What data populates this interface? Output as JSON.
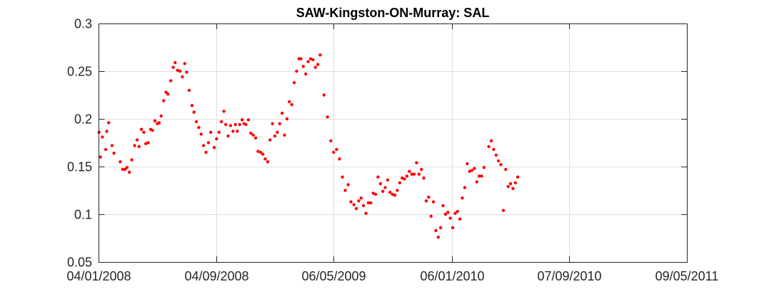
{
  "colors": {
    "marker": "#ff0000",
    "axes": "#262626",
    "grid": "#dfdfdf",
    "background": "#ffffff"
  },
  "chart_data": {
    "type": "scatter",
    "title": "SAW-Kingston-ON-Murray: SAL",
    "xlabel": "",
    "ylabel": "",
    "grid": true,
    "legend": "none",
    "x_axis_kind": "date",
    "xlim": [
      "2008-01-04",
      "2011-05-09"
    ],
    "ylim": [
      0.05,
      0.3
    ],
    "x_ticks": [
      {
        "date": "2008-01-04",
        "label": "04/01/2008"
      },
      {
        "date": "2008-09-04",
        "label": "04/09/2008"
      },
      {
        "date": "2009-05-06",
        "label": "06/05/2009"
      },
      {
        "date": "2010-01-06",
        "label": "06/01/2010"
      },
      {
        "date": "2010-09-07",
        "label": "07/09/2010"
      },
      {
        "date": "2011-05-09",
        "label": "09/05/2011"
      }
    ],
    "y_ticks": [
      {
        "value": 0.05,
        "label": "0.05"
      },
      {
        "value": 0.1,
        "label": "0.1"
      },
      {
        "value": 0.15,
        "label": "0.15"
      },
      {
        "value": 0.2,
        "label": "0.2"
      },
      {
        "value": 0.25,
        "label": "0.25"
      },
      {
        "value": 0.3,
        "label": "0.3"
      }
    ],
    "points": [
      [
        "2008-01-05",
        0.186
      ],
      [
        "2008-01-08",
        0.16
      ],
      [
        "2008-01-12",
        0.181
      ],
      [
        "2008-01-19",
        0.168
      ],
      [
        "2008-01-21",
        0.187
      ],
      [
        "2008-01-25",
        0.196
      ],
      [
        "2008-02-01",
        0.172
      ],
      [
        "2008-02-05",
        0.164
      ],
      [
        "2008-02-18",
        0.155
      ],
      [
        "2008-02-23",
        0.147
      ],
      [
        "2008-02-28",
        0.147
      ],
      [
        "2008-03-03",
        0.149
      ],
      [
        "2008-03-08",
        0.144
      ],
      [
        "2008-03-13",
        0.157
      ],
      [
        "2008-03-19",
        0.172
      ],
      [
        "2008-03-24",
        0.178
      ],
      [
        "2008-03-28",
        0.171
      ],
      [
        "2008-04-02",
        0.189
      ],
      [
        "2008-04-07",
        0.186
      ],
      [
        "2008-04-11",
        0.174
      ],
      [
        "2008-04-16",
        0.175
      ],
      [
        "2008-04-21",
        0.189
      ],
      [
        "2008-04-25",
        0.188
      ],
      [
        "2008-04-30",
        0.198
      ],
      [
        "2008-05-05",
        0.195
      ],
      [
        "2008-05-09",
        0.196
      ],
      [
        "2008-05-13",
        0.203
      ],
      [
        "2008-05-18",
        0.219
      ],
      [
        "2008-05-23",
        0.228
      ],
      [
        "2008-05-27",
        0.226
      ],
      [
        "2008-06-02",
        0.24
      ],
      [
        "2008-06-07",
        0.254
      ],
      [
        "2008-06-11",
        0.259
      ],
      [
        "2008-06-16",
        0.251
      ],
      [
        "2008-06-21",
        0.25
      ],
      [
        "2008-06-26",
        0.244
      ],
      [
        "2008-07-01",
        0.258
      ],
      [
        "2008-07-05",
        0.249
      ],
      [
        "2008-07-10",
        0.23
      ],
      [
        "2008-07-16",
        0.214
      ],
      [
        "2008-07-20",
        0.207
      ],
      [
        "2008-07-25",
        0.197
      ],
      [
        "2008-07-30",
        0.191
      ],
      [
        "2008-08-04",
        0.184
      ],
      [
        "2008-08-09",
        0.172
      ],
      [
        "2008-08-14",
        0.165
      ],
      [
        "2008-08-19",
        0.175
      ],
      [
        "2008-08-24",
        0.186
      ],
      [
        "2008-08-31",
        0.17
      ],
      [
        "2008-09-05",
        0.179
      ],
      [
        "2008-09-10",
        0.186
      ],
      [
        "2008-09-15",
        0.197
      ],
      [
        "2008-09-20",
        0.208
      ],
      [
        "2008-09-24",
        0.194
      ],
      [
        "2008-09-29",
        0.182
      ],
      [
        "2008-10-04",
        0.193
      ],
      [
        "2008-10-09",
        0.187
      ],
      [
        "2008-10-14",
        0.194
      ],
      [
        "2008-10-18",
        0.187
      ],
      [
        "2008-10-23",
        0.194
      ],
      [
        "2008-10-28",
        0.199
      ],
      [
        "2008-11-01",
        0.195
      ],
      [
        "2008-11-05",
        0.194
      ],
      [
        "2008-11-10",
        0.199
      ],
      [
        "2008-11-15",
        0.185
      ],
      [
        "2008-11-20",
        0.183
      ],
      [
        "2008-11-25",
        0.18
      ],
      [
        "2008-11-30",
        0.166
      ],
      [
        "2008-12-05",
        0.165
      ],
      [
        "2008-12-10",
        0.163
      ],
      [
        "2008-12-15",
        0.158
      ],
      [
        "2008-12-20",
        0.155
      ],
      [
        "2008-12-25",
        0.178
      ],
      [
        "2008-12-30",
        0.195
      ],
      [
        "2009-01-04",
        0.182
      ],
      [
        "2009-01-09",
        0.186
      ],
      [
        "2009-01-14",
        0.195
      ],
      [
        "2009-01-19",
        0.206
      ],
      [
        "2009-01-24",
        0.183
      ],
      [
        "2009-01-29",
        0.2
      ],
      [
        "2009-02-03",
        0.218
      ],
      [
        "2009-02-08",
        0.215
      ],
      [
        "2009-02-13",
        0.238
      ],
      [
        "2009-02-18",
        0.25
      ],
      [
        "2009-02-23",
        0.263
      ],
      [
        "2009-02-27",
        0.263
      ],
      [
        "2009-03-04",
        0.255
      ],
      [
        "2009-03-09",
        0.247
      ],
      [
        "2009-03-14",
        0.26
      ],
      [
        "2009-03-19",
        0.263
      ],
      [
        "2009-03-24",
        0.262
      ],
      [
        "2009-03-29",
        0.254
      ],
      [
        "2009-04-03",
        0.257
      ],
      [
        "2009-04-08",
        0.267
      ],
      [
        "2009-04-16",
        0.225
      ],
      [
        "2009-04-23",
        0.202
      ],
      [
        "2009-04-30",
        0.177
      ],
      [
        "2009-05-06",
        0.165
      ],
      [
        "2009-05-12",
        0.168
      ],
      [
        "2009-05-18",
        0.158
      ],
      [
        "2009-05-24",
        0.139
      ],
      [
        "2009-05-30",
        0.125
      ],
      [
        "2009-06-05",
        0.131
      ],
      [
        "2009-06-11",
        0.113
      ],
      [
        "2009-06-17",
        0.11
      ],
      [
        "2009-06-22",
        0.106
      ],
      [
        "2009-06-27",
        0.114
      ],
      [
        "2009-07-02",
        0.117
      ],
      [
        "2009-07-07",
        0.109
      ],
      [
        "2009-07-12",
        0.101
      ],
      [
        "2009-07-17",
        0.112
      ],
      [
        "2009-07-22",
        0.112
      ],
      [
        "2009-07-27",
        0.122
      ],
      [
        "2009-08-01",
        0.121
      ],
      [
        "2009-08-06",
        0.139
      ],
      [
        "2009-08-11",
        0.132
      ],
      [
        "2009-08-16",
        0.124
      ],
      [
        "2009-08-21",
        0.128
      ],
      [
        "2009-08-26",
        0.136
      ],
      [
        "2009-08-31",
        0.123
      ],
      [
        "2009-09-05",
        0.121
      ],
      [
        "2009-09-10",
        0.12
      ],
      [
        "2009-09-15",
        0.125
      ],
      [
        "2009-09-20",
        0.133
      ],
      [
        "2009-09-25",
        0.138
      ],
      [
        "2009-09-30",
        0.137
      ],
      [
        "2009-10-05",
        0.14
      ],
      [
        "2009-10-10",
        0.145
      ],
      [
        "2009-10-15",
        0.142
      ],
      [
        "2009-10-20",
        0.142
      ],
      [
        "2009-10-25",
        0.154
      ],
      [
        "2009-10-30",
        0.142
      ],
      [
        "2009-11-04",
        0.147
      ],
      [
        "2009-11-09",
        0.138
      ],
      [
        "2009-11-14",
        0.114
      ],
      [
        "2009-11-19",
        0.118
      ],
      [
        "2009-11-24",
        0.098
      ],
      [
        "2009-11-29",
        0.113
      ],
      [
        "2009-12-04",
        0.083
      ],
      [
        "2009-12-09",
        0.076
      ],
      [
        "2009-12-14",
        0.086
      ],
      [
        "2009-12-19",
        0.109
      ],
      [
        "2009-12-24",
        0.1
      ],
      [
        "2009-12-29",
        0.102
      ],
      [
        "2010-01-03",
        0.096
      ],
      [
        "2010-01-08",
        0.086
      ],
      [
        "2010-01-13",
        0.101
      ],
      [
        "2010-01-18",
        0.103
      ],
      [
        "2010-01-23",
        0.095
      ],
      [
        "2010-01-28",
        0.117
      ],
      [
        "2010-02-02",
        0.128
      ],
      [
        "2010-02-07",
        0.153
      ],
      [
        "2010-02-12",
        0.145
      ],
      [
        "2010-02-17",
        0.146
      ],
      [
        "2010-02-22",
        0.148
      ],
      [
        "2010-02-27",
        0.134
      ],
      [
        "2010-03-04",
        0.14
      ],
      [
        "2010-03-09",
        0.14
      ],
      [
        "2010-03-14",
        0.149
      ],
      [
        "2010-03-24",
        0.171
      ],
      [
        "2010-03-29",
        0.177
      ],
      [
        "2010-04-03",
        0.168
      ],
      [
        "2010-04-08",
        0.162
      ],
      [
        "2010-04-13",
        0.156
      ],
      [
        "2010-04-18",
        0.152
      ],
      [
        "2010-04-23",
        0.104
      ],
      [
        "2010-04-28",
        0.147
      ],
      [
        "2010-05-03",
        0.129
      ],
      [
        "2010-05-08",
        0.132
      ],
      [
        "2010-05-13",
        0.127
      ],
      [
        "2010-05-18",
        0.133
      ],
      [
        "2010-05-23",
        0.139
      ]
    ]
  }
}
